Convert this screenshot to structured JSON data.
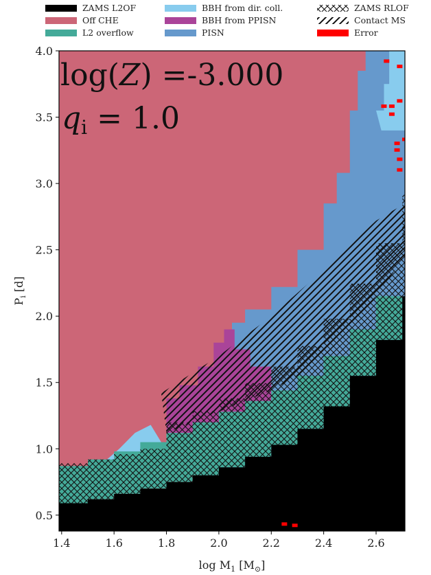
{
  "chart_data": {
    "type": "heatmap",
    "xlabel": "log M",
    "xlabel_sub": "1",
    "xlabel_unit_open": " [M",
    "xlabel_unit_sub": "⊙",
    "xlabel_unit_close": "]",
    "ylabel": "P",
    "ylabel_sub": "i",
    "ylabel_unit": " [d]",
    "xlim": [
      1.39,
      2.71
    ],
    "ylim": [
      0.38,
      4.0
    ],
    "xticks": [
      "1.4",
      "1.6",
      "1.8",
      "2.0",
      "2.2",
      "2.4",
      "2.6"
    ],
    "xtick_values": [
      1.4,
      1.6,
      1.8,
      2.0,
      2.2,
      2.4,
      2.6
    ],
    "yticks": [
      "0.5",
      "1.0",
      "1.5",
      "2.0",
      "2.5",
      "3.0",
      "3.5",
      "4.0"
    ],
    "ytick_values": [
      0.5,
      1.0,
      1.5,
      2.0,
      2.5,
      3.0,
      3.5,
      4.0
    ],
    "annotations": {
      "line1_prefix": "log(",
      "line1_var": "Z",
      "line1_suffix": ") =-3.000",
      "line2_var": "q",
      "line2_sub": "i",
      "line2_suffix": " = 1.0"
    },
    "legend": [
      {
        "label": "ZAMS L2OF",
        "color": "#000000",
        "kind": "fill"
      },
      {
        "label": "Off CHE",
        "color": "#cc6677",
        "kind": "fill"
      },
      {
        "label": "L2 overflow",
        "color": "#44aa99",
        "kind": "fill"
      },
      {
        "label": "BBH from dir. coll.",
        "color": "#88ccee",
        "kind": "fill"
      },
      {
        "label": "BBH from PPISN",
        "color": "#aa4499",
        "kind": "fill"
      },
      {
        "label": "PISN",
        "color": "#6699cc",
        "kind": "fill"
      },
      {
        "label": "ZAMS RLOF",
        "color": "#000000",
        "kind": "crosshatch"
      },
      {
        "label": "Contact MS",
        "color": "#000000",
        "kind": "hatch"
      },
      {
        "label": "Error",
        "color": "#ff0000",
        "kind": "fill"
      }
    ],
    "regions": {
      "zams_l2of_upper": [
        [
          1.39,
          0.59
        ],
        [
          1.5,
          0.62
        ],
        [
          1.6,
          0.66
        ],
        [
          1.7,
          0.7
        ],
        [
          1.8,
          0.75
        ],
        [
          1.9,
          0.8
        ],
        [
          2.0,
          0.86
        ],
        [
          2.1,
          0.94
        ],
        [
          2.2,
          1.03
        ],
        [
          2.3,
          1.15
        ],
        [
          2.4,
          1.32
        ],
        [
          2.5,
          1.55
        ],
        [
          2.6,
          1.82
        ],
        [
          2.7,
          2.15
        ],
        [
          2.71,
          2.16
        ]
      ],
      "l2_overflow_upper": [
        [
          1.39,
          0.87
        ],
        [
          1.5,
          0.92
        ],
        [
          1.6,
          0.98
        ],
        [
          1.7,
          1.05
        ],
        [
          1.8,
          1.12
        ],
        [
          1.9,
          1.2
        ],
        [
          2.0,
          1.28
        ],
        [
          2.1,
          1.36
        ],
        [
          2.2,
          1.44
        ],
        [
          2.3,
          1.55
        ],
        [
          2.4,
          1.7
        ],
        [
          2.5,
          1.9
        ],
        [
          2.6,
          2.15
        ],
        [
          2.71,
          2.45
        ]
      ],
      "pisn_left_edge": [
        [
          1.92,
          1.3
        ],
        [
          1.96,
          1.58
        ],
        [
          2.0,
          1.78
        ],
        [
          2.05,
          1.95
        ],
        [
          2.1,
          2.05
        ],
        [
          2.2,
          2.22
        ],
        [
          2.3,
          2.5
        ],
        [
          2.4,
          2.85
        ],
        [
          2.45,
          3.08
        ],
        [
          2.5,
          3.55
        ],
        [
          2.53,
          3.85
        ],
        [
          2.56,
          4.0
        ]
      ],
      "dir_coll_left_edge": [
        [
          2.6,
          3.55
        ],
        [
          2.63,
          3.75
        ],
        [
          2.65,
          4.0
        ]
      ],
      "ppisn_boundary": [
        [
          1.78,
          1.05
        ],
        [
          1.8,
          1.38
        ],
        [
          1.85,
          1.48
        ],
        [
          1.92,
          1.62
        ],
        [
          1.98,
          1.8
        ],
        [
          2.02,
          1.9
        ],
        [
          2.06,
          1.75
        ],
        [
          2.12,
          1.62
        ],
        [
          2.2,
          1.48
        ]
      ],
      "small_dir_coll": [
        [
          1.55,
          0.88
        ],
        [
          1.62,
          1.0
        ],
        [
          1.68,
          1.12
        ],
        [
          1.74,
          1.18
        ],
        [
          1.78,
          1.05
        ],
        [
          1.74,
          0.9
        ]
      ],
      "contact_ms_band": [
        [
          1.78,
          1.42
        ],
        [
          2.0,
          1.7
        ],
        [
          2.2,
          2.0
        ],
        [
          2.4,
          2.35
        ],
        [
          2.6,
          2.72
        ],
        [
          2.71,
          2.85
        ]
      ],
      "error_cells": [
        [
          2.64,
          3.92
        ],
        [
          2.69,
          3.88
        ],
        [
          2.63,
          3.58
        ],
        [
          2.66,
          3.58
        ],
        [
          2.66,
          3.52
        ],
        [
          2.69,
          3.62
        ],
        [
          2.68,
          3.3
        ],
        [
          2.68,
          3.25
        ],
        [
          2.71,
          3.33
        ],
        [
          2.69,
          3.18
        ],
        [
          2.69,
          3.1
        ],
        [
          2.25,
          0.43
        ],
        [
          2.29,
          0.42
        ]
      ]
    }
  }
}
